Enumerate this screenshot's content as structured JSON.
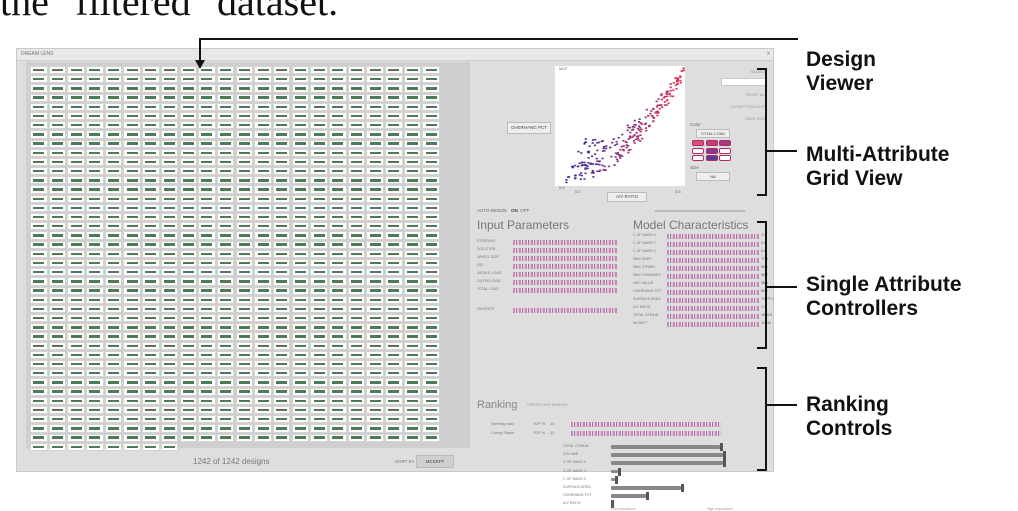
{
  "top_text": "the \"filtered\" dataset.",
  "window": {
    "title": "DREAM LENS",
    "close_label": "x"
  },
  "design_viewer": {
    "count_text": "1242 of 1242 designs",
    "sort_label": "SORT BY",
    "sort_value": "MCSKFT"
  },
  "grid_view": {
    "overlay_label": "OVERHANG PCT",
    "x_axis_label": "A/V RATIO",
    "y_max_label": "MCF",
    "y_min_label": "0.5",
    "x_min_label": "0.0",
    "x_max_label": "0.6",
    "color_label": "Color",
    "color_value": "TOTAL LOAD",
    "size_label": "Size",
    "size_value": "NA",
    "side_links": [
      "SEARCH",
      "RESET ALL",
      "CLEAR THOUGHTS",
      "SAVE VIEW"
    ],
    "auto_resize_label": "AUTO-RESIZE",
    "auto_resize_on": "ON",
    "auto_resize_off": "OFF"
  },
  "input_parameters": {
    "title": "Input Parameters",
    "rows": [
      "STEERING",
      "SOLUTION",
      "WHEEL SIZE",
      "REI",
      "MIDDLE LOAD",
      "OUTER LOAD",
      "TOTAL LOAD"
    ],
    "extra_row": "FAVORITE"
  },
  "model_characteristics": {
    "title": "Model Characteristics",
    "rows": [
      {
        "label": "C OF MASS X",
        "value": "2.3"
      },
      {
        "label": "C OF MASS Y",
        "value": "0.9"
      },
      {
        "label": "C OF MASS Z",
        "value": "0.6"
      },
      {
        "label": "MAX DEEP",
        "value": "77.6"
      },
      {
        "label": "MAX STRAIN",
        "value": "56.1"
      },
      {
        "label": "MAX VONMISES",
        "value": "38.7"
      },
      {
        "label": "DEG VALUE",
        "value": "38.1"
      },
      {
        "label": "OVERHANG PCT",
        "value": "60.7"
      },
      {
        "label": "SURFACE AREA",
        "value": "74977.1"
      },
      {
        "label": "A/V RATIO",
        "value": "1.3"
      },
      {
        "label": "TOTAL STRAIN",
        "value": "1005.8"
      },
      {
        "label": "MCSKFT",
        "value": "12994"
      }
    ]
  },
  "ranking": {
    "title": "Ranking",
    "subtitle": "CREATE NEW RANKING",
    "rankers": [
      {
        "label": "Steering ratio",
        "top": "TOP %",
        "value": "-10"
      },
      {
        "label": "Curing Stress",
        "top": "TOP %",
        "value": "-10"
      }
    ],
    "weights": [
      {
        "label": "TOTAL STRAIN",
        "level": 0.78
      },
      {
        "label": "VOLUME",
        "level": 0.8
      },
      {
        "label": "C OF MASS X",
        "level": 0.8
      },
      {
        "label": "C OF MASS Y",
        "level": 0.05
      },
      {
        "label": "C OF MASS Z",
        "level": 0.03
      },
      {
        "label": "SURFACE AREA",
        "level": 0.5
      },
      {
        "label": "OVERHANG PCT",
        "level": 0.25
      },
      {
        "label": "A/V RATIO",
        "level": 0.0
      }
    ],
    "low_label": "Low Importance",
    "high_label": "High Importance"
  },
  "annotations": [
    {
      "lines": [
        "Design",
        "Viewer"
      ]
    },
    {
      "lines": [
        "Multi-Attribute",
        "Grid View"
      ]
    },
    {
      "lines": [
        "Single Attribute",
        "Controllers"
      ]
    },
    {
      "lines": [
        "Ranking",
        "Controls"
      ]
    }
  ]
}
